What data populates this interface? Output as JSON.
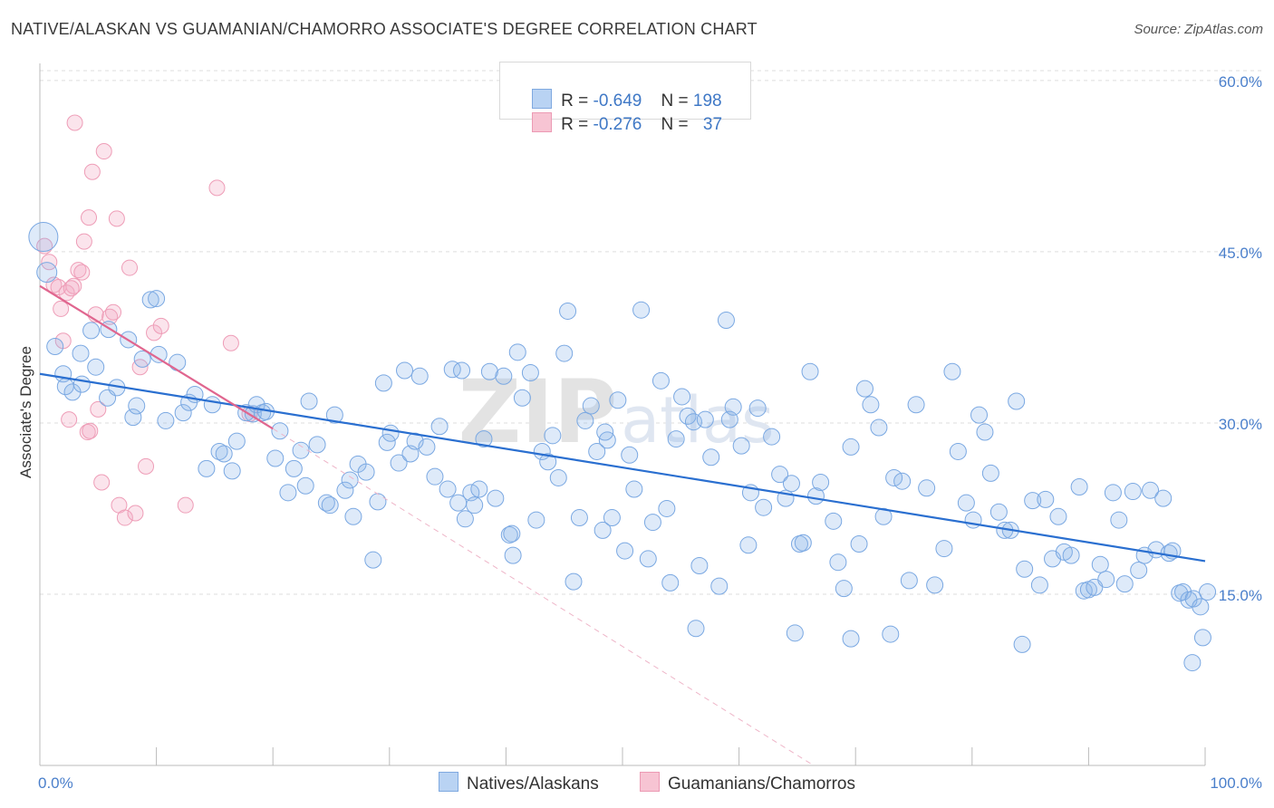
{
  "title": "NATIVE/ALASKAN VS GUAMANIAN/CHAMORRO ASSOCIATE'S DEGREE CORRELATION CHART",
  "source": "Source: ZipAtlas.com",
  "watermark": "ZIPatlas",
  "legend_top": [
    {
      "r_label": "R = ",
      "r_value": "-0.649",
      "n_label": "N = ",
      "n_value": "198"
    },
    {
      "r_label": "R = ",
      "r_value": "-0.276",
      "n_label": "N = ",
      "n_value": "37"
    }
  ],
  "legend_bottom": [
    "Natives/Alaskans",
    "Guamanians/Chamorros"
  ],
  "colors": {
    "blue": "#8ab4e8",
    "blue_line": "#2a6fd0",
    "pink": "#f0a9bf",
    "pink_line": "#e0668f"
  },
  "chart_data": {
    "type": "scatter",
    "ylabel": "Associate's Degree",
    "xlim": [
      0,
      100
    ],
    "ylim": [
      0,
      61.5
    ],
    "x_ticks": [
      "0.0%",
      "100.0%"
    ],
    "y_ticks": [
      {
        "value": 15,
        "label": "15.0%"
      },
      {
        "value": 30,
        "label": "30.0%"
      },
      {
        "value": 45,
        "label": "45.0%"
      },
      {
        "value": 60,
        "label": "60.0%"
      }
    ],
    "series": [
      {
        "name": "Natives/Alaskans",
        "trend": {
          "x": [
            0,
            100
          ],
          "y": [
            34.3,
            17.9
          ]
        },
        "points": [
          [
            0.3,
            46.3
          ],
          [
            0.6,
            43.2
          ],
          [
            1.3,
            36.7
          ],
          [
            2.0,
            34.3
          ],
          [
            2.2,
            33.2
          ],
          [
            2.8,
            32.7
          ],
          [
            3.5,
            36.1
          ],
          [
            3.6,
            33.4
          ],
          [
            4.4,
            38.1
          ],
          [
            4.8,
            34.9
          ],
          [
            5.9,
            38.2
          ],
          [
            5.8,
            32.2
          ],
          [
            6.6,
            33.1
          ],
          [
            7.6,
            37.3
          ],
          [
            8.0,
            30.5
          ],
          [
            8.3,
            31.5
          ],
          [
            8.8,
            35.6
          ],
          [
            9.5,
            40.8
          ],
          [
            10.0,
            40.9
          ],
          [
            10.2,
            36.0
          ],
          [
            10.8,
            30.2
          ],
          [
            11.8,
            35.3
          ],
          [
            12.3,
            30.9
          ],
          [
            12.8,
            31.8
          ],
          [
            13.3,
            32.5
          ],
          [
            14.8,
            31.6
          ],
          [
            14.3,
            26.0
          ],
          [
            15.4,
            27.5
          ],
          [
            15.8,
            27.3
          ],
          [
            16.5,
            25.8
          ],
          [
            16.9,
            28.4
          ],
          [
            17.7,
            30.9
          ],
          [
            18.3,
            30.8
          ],
          [
            18.6,
            31.6
          ],
          [
            19.1,
            30.9
          ],
          [
            19.4,
            31.0
          ],
          [
            20.2,
            26.9
          ],
          [
            20.6,
            29.3
          ],
          [
            21.3,
            23.9
          ],
          [
            21.8,
            26.0
          ],
          [
            22.4,
            27.6
          ],
          [
            22.8,
            24.5
          ],
          [
            23.1,
            31.9
          ],
          [
            23.8,
            28.1
          ],
          [
            24.6,
            23.0
          ],
          [
            24.9,
            22.8
          ],
          [
            25.3,
            30.7
          ],
          [
            26.2,
            24.1
          ],
          [
            26.6,
            25.0
          ],
          [
            26.9,
            21.8
          ],
          [
            27.3,
            26.4
          ],
          [
            28.0,
            25.7
          ],
          [
            28.6,
            18.0
          ],
          [
            29.0,
            23.1
          ],
          [
            29.5,
            33.5
          ],
          [
            29.8,
            28.3
          ],
          [
            30.1,
            29.1
          ],
          [
            30.8,
            26.5
          ],
          [
            31.3,
            34.6
          ],
          [
            31.8,
            27.3
          ],
          [
            32.2,
            28.4
          ],
          [
            32.6,
            34.1
          ],
          [
            33.2,
            27.9
          ],
          [
            33.9,
            25.3
          ],
          [
            34.3,
            29.7
          ],
          [
            35.0,
            24.2
          ],
          [
            35.4,
            34.7
          ],
          [
            35.9,
            23.0
          ],
          [
            36.2,
            34.6
          ],
          [
            36.5,
            21.6
          ],
          [
            37.0,
            23.9
          ],
          [
            37.3,
            22.8
          ],
          [
            37.7,
            24.2
          ],
          [
            38.1,
            28.6
          ],
          [
            38.6,
            34.5
          ],
          [
            39.1,
            23.4
          ],
          [
            39.8,
            34.1
          ],
          [
            40.3,
            20.2
          ],
          [
            40.6,
            18.4
          ],
          [
            41.0,
            36.2
          ],
          [
            41.4,
            32.2
          ],
          [
            42.1,
            34.4
          ],
          [
            42.6,
            21.5
          ],
          [
            43.1,
            27.5
          ],
          [
            43.6,
            26.6
          ],
          [
            44.0,
            28.9
          ],
          [
            44.5,
            25.2
          ],
          [
            45.0,
            36.1
          ],
          [
            45.3,
            39.8
          ],
          [
            45.8,
            16.1
          ],
          [
            46.3,
            21.7
          ],
          [
            46.8,
            30.2
          ],
          [
            47.3,
            31.5
          ],
          [
            47.8,
            27.5
          ],
          [
            48.3,
            20.6
          ],
          [
            48.7,
            28.5
          ],
          [
            49.1,
            21.7
          ],
          [
            49.6,
            32.0
          ],
          [
            50.2,
            18.8
          ],
          [
            50.6,
            27.2
          ],
          [
            51.0,
            24.2
          ],
          [
            51.6,
            39.9
          ],
          [
            52.2,
            18.1
          ],
          [
            52.6,
            21.3
          ],
          [
            53.3,
            33.7
          ],
          [
            53.8,
            22.5
          ],
          [
            54.1,
            16.0
          ],
          [
            54.6,
            28.6
          ],
          [
            55.1,
            32.3
          ],
          [
            55.6,
            30.6
          ],
          [
            56.1,
            30.1
          ],
          [
            56.6,
            17.5
          ],
          [
            57.1,
            30.3
          ],
          [
            57.6,
            27.0
          ],
          [
            58.3,
            15.7
          ],
          [
            58.9,
            39.0
          ],
          [
            59.2,
            30.3
          ],
          [
            59.5,
            31.4
          ],
          [
            60.2,
            28.0
          ],
          [
            60.8,
            19.3
          ],
          [
            61.0,
            23.9
          ],
          [
            61.6,
            31.3
          ],
          [
            62.1,
            22.6
          ],
          [
            62.8,
            28.8
          ],
          [
            63.5,
            25.5
          ],
          [
            64.0,
            23.4
          ],
          [
            64.5,
            24.7
          ],
          [
            65.2,
            19.4
          ],
          [
            65.5,
            19.5
          ],
          [
            66.1,
            34.5
          ],
          [
            66.6,
            23.6
          ],
          [
            67.0,
            24.8
          ],
          [
            68.1,
            21.4
          ],
          [
            68.5,
            17.8
          ],
          [
            69.0,
            15.5
          ],
          [
            69.6,
            27.9
          ],
          [
            70.3,
            19.4
          ],
          [
            70.8,
            33.0
          ],
          [
            71.3,
            31.6
          ],
          [
            72.0,
            29.6
          ],
          [
            72.4,
            21.8
          ],
          [
            73.3,
            25.2
          ],
          [
            74.0,
            24.9
          ],
          [
            74.6,
            16.2
          ],
          [
            75.2,
            31.6
          ],
          [
            76.1,
            24.3
          ],
          [
            76.8,
            15.8
          ],
          [
            77.6,
            19.0
          ],
          [
            78.3,
            34.5
          ],
          [
            78.8,
            27.5
          ],
          [
            79.5,
            23.0
          ],
          [
            80.1,
            21.5
          ],
          [
            80.6,
            30.7
          ],
          [
            81.1,
            29.2
          ],
          [
            81.6,
            25.6
          ],
          [
            82.3,
            22.2
          ],
          [
            82.8,
            20.6
          ],
          [
            83.3,
            20.6
          ],
          [
            83.8,
            31.9
          ],
          [
            84.5,
            17.2
          ],
          [
            85.2,
            23.2
          ],
          [
            85.8,
            15.8
          ],
          [
            86.3,
            23.3
          ],
          [
            86.9,
            18.1
          ],
          [
            87.4,
            21.8
          ],
          [
            87.9,
            18.7
          ],
          [
            88.5,
            18.4
          ],
          [
            89.2,
            24.4
          ],
          [
            89.6,
            15.3
          ],
          [
            90.0,
            15.4
          ],
          [
            90.5,
            15.6
          ],
          [
            91.0,
            17.6
          ],
          [
            91.5,
            16.3
          ],
          [
            92.1,
            23.9
          ],
          [
            92.6,
            21.5
          ],
          [
            93.1,
            15.9
          ],
          [
            93.8,
            24.0
          ],
          [
            94.3,
            17.1
          ],
          [
            94.8,
            18.4
          ],
          [
            95.3,
            24.1
          ],
          [
            95.8,
            18.9
          ],
          [
            96.4,
            23.4
          ],
          [
            96.9,
            18.6
          ],
          [
            97.2,
            18.8
          ],
          [
            97.8,
            15.1
          ],
          [
            98.1,
            15.2
          ],
          [
            98.6,
            14.5
          ],
          [
            99.0,
            14.6
          ],
          [
            99.6,
            13.9
          ],
          [
            100.2,
            15.2
          ],
          [
            98.9,
            9.0
          ],
          [
            99.8,
            11.2
          ],
          [
            40.5,
            20.3
          ],
          [
            56.3,
            12.0
          ],
          [
            64.8,
            11.6
          ],
          [
            69.6,
            11.1
          ],
          [
            73.0,
            11.5
          ],
          [
            84.3,
            10.6
          ],
          [
            48.5,
            29.2
          ]
        ]
      },
      {
        "name": "Guamanians/Chamorros",
        "trend": {
          "x": [
            0,
            20
          ],
          "y": [
            42.0,
            29.5
          ]
        },
        "trend_dashed": {
          "x": [
            20,
            66.4
          ],
          "y": [
            29.5,
            0
          ]
        },
        "points": [
          [
            0.4,
            45.5
          ],
          [
            0.8,
            44.1
          ],
          [
            1.2,
            42.1
          ],
          [
            1.6,
            41.9
          ],
          [
            1.8,
            40.0
          ],
          [
            2.0,
            37.2
          ],
          [
            2.3,
            41.4
          ],
          [
            2.5,
            30.3
          ],
          [
            3.0,
            56.3
          ],
          [
            3.3,
            43.4
          ],
          [
            3.6,
            43.2
          ],
          [
            3.8,
            45.9
          ],
          [
            4.1,
            29.2
          ],
          [
            4.3,
            29.3
          ],
          [
            4.2,
            48.0
          ],
          [
            4.5,
            52.0
          ],
          [
            4.8,
            39.5
          ],
          [
            5.0,
            31.2
          ],
          [
            5.3,
            24.8
          ],
          [
            5.5,
            53.8
          ],
          [
            6.0,
            39.3
          ],
          [
            6.3,
            39.7
          ],
          [
            6.6,
            47.9
          ],
          [
            6.8,
            22.8
          ],
          [
            7.3,
            21.7
          ],
          [
            7.7,
            43.6
          ],
          [
            8.2,
            22.1
          ],
          [
            8.6,
            34.9
          ],
          [
            9.1,
            26.2
          ],
          [
            9.8,
            37.9
          ],
          [
            10.4,
            38.5
          ],
          [
            12.5,
            22.8
          ],
          [
            15.2,
            50.6
          ],
          [
            16.4,
            37.0
          ],
          [
            18.0,
            30.8
          ],
          [
            2.9,
            42.0
          ],
          [
            2.7,
            41.8
          ]
        ]
      }
    ]
  }
}
